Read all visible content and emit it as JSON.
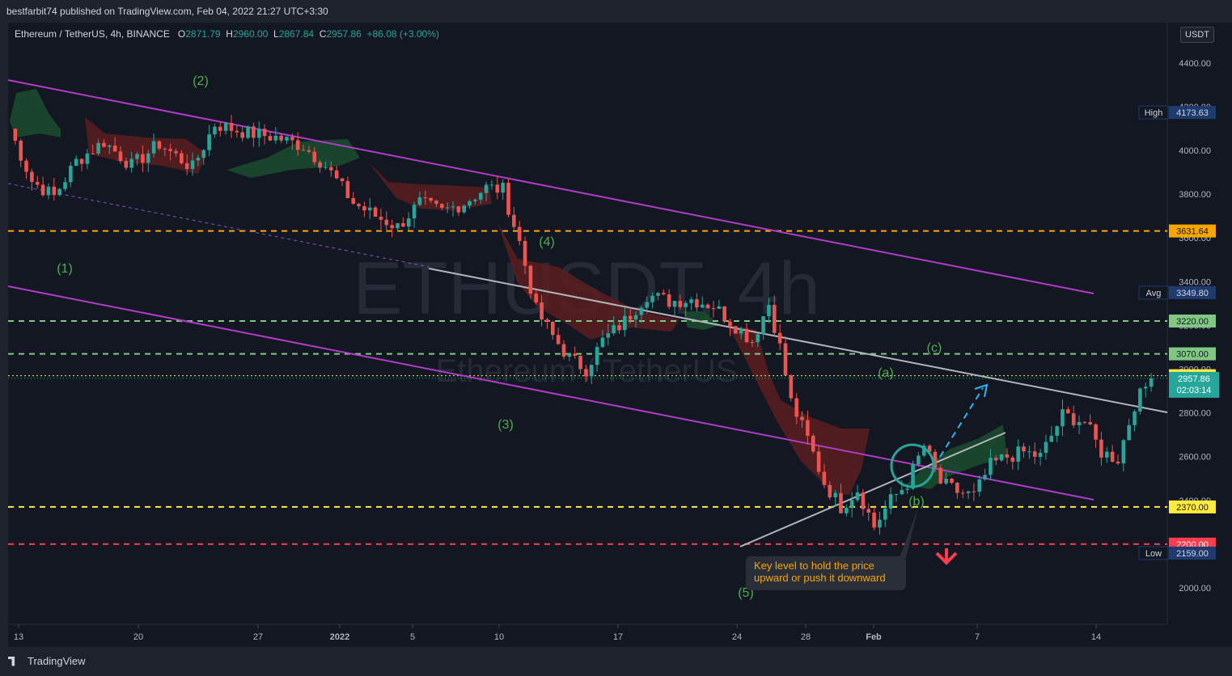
{
  "header": {
    "published": "bestfarbit74 published on TradingView.com, Feb 04, 2022 21:27 UTC+3:30"
  },
  "legend": {
    "symbol": "Ethereum / TetherUS, 4h, BINANCE",
    "o_label": "O",
    "o": "2871.79",
    "h_label": "H",
    "h": "2960.00",
    "l_label": "L",
    "l": "2867.84",
    "c_label": "C",
    "c": "2957.86",
    "change": "+86.08 (+3.00%)"
  },
  "currency_button": "USDT",
  "watermark": {
    "main": "ETHUSDT, 4h",
    "sub": "Ethereum / TetherUS"
  },
  "footer": {
    "brand": "TradingView"
  },
  "annotation": {
    "callout": "Key level to hold the price upward or push it downward"
  },
  "colors": {
    "bg": "#131722",
    "up": "#26a69a",
    "down": "#ef5350",
    "channel": "#b03cc8",
    "green_level": "#81c784",
    "orange_level": "#f7a600",
    "red_level": "#ff3b4e",
    "wave_label": "#4caf50"
  },
  "chart_data": {
    "type": "candlestick",
    "symbol": "ETHUSDT",
    "timeframe": "4h",
    "exchange": "BINANCE",
    "y_axis": {
      "ticks": [
        "4400.00",
        "4200.00",
        "4000.00",
        "3800.00",
        "3600.00",
        "3400.00",
        "3200.00",
        "3000.00",
        "2800.00",
        "2600.00",
        "2400.00",
        "2200.00",
        "2000.00"
      ],
      "tick_values": [
        4400,
        4200,
        4000,
        3800,
        3600,
        3400,
        3200,
        3000,
        2800,
        2600,
        2400,
        2200,
        2000
      ],
      "currency": "USDT"
    },
    "x_axis": {
      "ticks": [
        "13",
        "20",
        "27",
        "2022",
        "5",
        "10",
        "17",
        "24",
        "28",
        "Feb",
        "7",
        "14"
      ]
    },
    "price_labels": [
      {
        "label": "High",
        "value": "4173.63",
        "kind": "high"
      },
      {
        "label": "",
        "value": "3631.64",
        "kind": "orange"
      },
      {
        "label": "Avg",
        "value": "3349.80",
        "kind": "avg"
      },
      {
        "label": "",
        "value": "3220.00",
        "kind": "green"
      },
      {
        "label": "",
        "value": "3070.00",
        "kind": "green"
      },
      {
        "label": "",
        "value": "2970.00",
        "kind": "yellow"
      },
      {
        "label": "",
        "value": "2957.86",
        "kind": "last"
      },
      {
        "label": "",
        "value": "2370.00",
        "kind": "yellow"
      },
      {
        "label": "",
        "value": "2200.00",
        "kind": "red"
      },
      {
        "label": "Low",
        "value": "2159.00",
        "kind": "low"
      }
    ],
    "countdown": "02:03:14",
    "horizontal_levels": [
      {
        "value": 3631.64,
        "color": "orange",
        "style": "dashed"
      },
      {
        "value": 3220,
        "color": "green",
        "style": "dashed"
      },
      {
        "value": 3070,
        "color": "green",
        "style": "dashed"
      },
      {
        "value": 2970,
        "color": "yellow",
        "style": "dotted"
      },
      {
        "value": 2370,
        "color": "yellow",
        "style": "dashed"
      },
      {
        "value": 2200,
        "color": "red",
        "style": "dashed"
      }
    ],
    "wave_labels": [
      "(1)",
      "(2)",
      "(3)",
      "(4)",
      "(5)",
      "(a)",
      "(b)",
      "(c)"
    ],
    "close_path": [
      [
        0,
        4100
      ],
      [
        4,
        3860
      ],
      [
        8,
        3790
      ],
      [
        12,
        3950
      ],
      [
        17,
        4040
      ],
      [
        22,
        3930
      ],
      [
        27,
        4030
      ],
      [
        33,
        3920
      ],
      [
        37,
        4120
      ],
      [
        43,
        4080
      ],
      [
        48,
        4060
      ],
      [
        53,
        4020
      ],
      [
        57,
        3930
      ],
      [
        62,
        3760
      ],
      [
        66,
        3700
      ],
      [
        70,
        3650
      ],
      [
        74,
        3760
      ],
      [
        78,
        3720
      ],
      [
        82,
        3760
      ],
      [
        86,
        3830
      ],
      [
        89,
        3820
      ],
      [
        92,
        3580
      ],
      [
        95,
        3270
      ],
      [
        98,
        3150
      ],
      [
        101,
        3050
      ],
      [
        104,
        3000
      ],
      [
        107,
        3130
      ],
      [
        111,
        3220
      ],
      [
        115,
        3340
      ],
      [
        119,
        3310
      ],
      [
        123,
        3320
      ],
      [
        127,
        3290
      ],
      [
        130,
        3220
      ],
      [
        134,
        3130
      ],
      [
        137,
        3300
      ],
      [
        139,
        3100
      ],
      [
        141,
        2850
      ],
      [
        144,
        2680
      ],
      [
        147,
        2480
      ],
      [
        150,
        2370
      ],
      [
        153,
        2450
      ],
      [
        156,
        2280
      ],
      [
        159,
        2400
      ],
      [
        162,
        2480
      ],
      [
        165,
        2650
      ],
      [
        168,
        2480
      ],
      [
        171,
        2440
      ],
      [
        174,
        2420
      ],
      [
        177,
        2560
      ],
      [
        180,
        2600
      ],
      [
        183,
        2620
      ],
      [
        186,
        2600
      ],
      [
        190,
        2790
      ],
      [
        194,
        2760
      ],
      [
        197,
        2620
      ],
      [
        200,
        2590
      ],
      [
        203,
        2840
      ],
      [
        206,
        2957.86
      ]
    ]
  }
}
